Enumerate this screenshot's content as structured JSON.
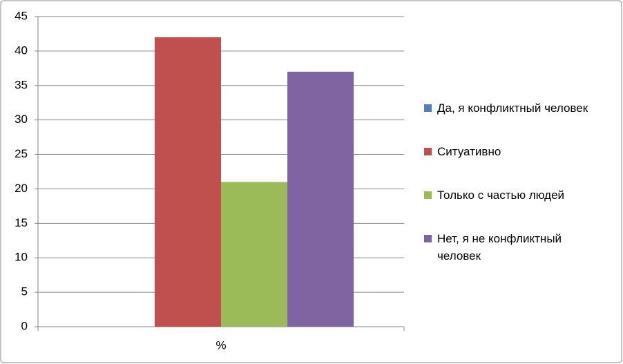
{
  "chart_data": {
    "type": "bar",
    "categories": [
      "%"
    ],
    "series": [
      {
        "name": "Да, я конфликтный человек",
        "color": "#4f81bd",
        "values": [
          0
        ]
      },
      {
        "name": "Ситуативно",
        "color": "#c0504d",
        "values": [
          42
        ]
      },
      {
        "name": "Только с частью людей",
        "color": "#9bbb59",
        "values": [
          21
        ]
      },
      {
        "name": "Нет, я не конфликтный человек",
        "color": "#8064a2",
        "values": [
          37
        ]
      }
    ],
    "ylim": [
      0,
      45
    ],
    "yticks": [
      0,
      5,
      10,
      15,
      20,
      25,
      30,
      35,
      40,
      45
    ],
    "grid": true,
    "legend": "right"
  }
}
